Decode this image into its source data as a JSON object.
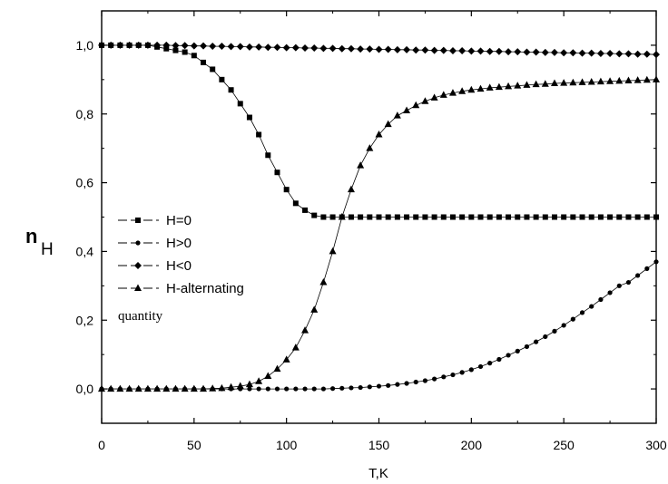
{
  "chart_data": {
    "type": "scatter",
    "xlabel": "T,K",
    "ylabel": "n",
    "ylabel_subscript": "H",
    "xlim": [
      0,
      300
    ],
    "ylim": [
      -0.1,
      1.1
    ],
    "xticks": [
      0,
      50,
      100,
      150,
      200,
      250,
      300
    ],
    "xtick_labels": [
      "0",
      "50",
      "100",
      "150",
      "200",
      "250",
      "300"
    ],
    "yticks": [
      0.0,
      0.2,
      0.4,
      0.6,
      0.8,
      1.0
    ],
    "ytick_labels": [
      "0,0",
      "0,2",
      "0,4",
      "0,6",
      "0,8",
      "1,0"
    ],
    "grid": false,
    "legend_position": "center-left",
    "legend_note": "quantity",
    "series": [
      {
        "name": "H=0",
        "marker": "square",
        "x": [
          0,
          5,
          10,
          15,
          20,
          25,
          30,
          35,
          40,
          45,
          50,
          55,
          60,
          65,
          70,
          75,
          80,
          85,
          90,
          95,
          100,
          105,
          110,
          115,
          120,
          125,
          130,
          135,
          140,
          145,
          150,
          155,
          160,
          165,
          170,
          175,
          180,
          185,
          190,
          195,
          200,
          205,
          210,
          215,
          220,
          225,
          230,
          235,
          240,
          245,
          250,
          255,
          260,
          265,
          270,
          275,
          280,
          285,
          290,
          295,
          300
        ],
        "y": [
          1.0,
          1.0,
          1.0,
          1.0,
          1.0,
          1.0,
          0.995,
          0.99,
          0.985,
          0.98,
          0.97,
          0.95,
          0.93,
          0.9,
          0.87,
          0.83,
          0.79,
          0.74,
          0.68,
          0.63,
          0.58,
          0.54,
          0.52,
          0.505,
          0.5,
          0.5,
          0.5,
          0.5,
          0.5,
          0.5,
          0.5,
          0.5,
          0.5,
          0.5,
          0.5,
          0.5,
          0.5,
          0.5,
          0.5,
          0.5,
          0.5,
          0.5,
          0.5,
          0.5,
          0.5,
          0.5,
          0.5,
          0.5,
          0.5,
          0.5,
          0.5,
          0.5,
          0.5,
          0.5,
          0.5,
          0.5,
          0.5,
          0.5,
          0.5,
          0.5,
          0.5
        ]
      },
      {
        "name": "H>0",
        "marker": "circle",
        "x": [
          0,
          5,
          10,
          15,
          20,
          25,
          30,
          35,
          40,
          45,
          50,
          55,
          60,
          65,
          70,
          75,
          80,
          85,
          90,
          95,
          100,
          105,
          110,
          115,
          120,
          125,
          130,
          135,
          140,
          145,
          150,
          155,
          160,
          165,
          170,
          175,
          180,
          185,
          190,
          195,
          200,
          205,
          210,
          215,
          220,
          225,
          230,
          235,
          240,
          245,
          250,
          255,
          260,
          265,
          270,
          275,
          280,
          285,
          290,
          295,
          300
        ],
        "y": [
          0.0,
          0.0,
          0.0,
          0.0,
          0.0,
          0.0,
          0.0,
          0.0,
          0.0,
          0.0,
          0.0,
          0.0,
          0.0,
          0.0,
          0.0,
          0.0,
          0.0,
          0.0,
          0.0,
          0.0,
          0.0,
          0.0,
          0.0,
          0.0,
          0.0,
          0.001,
          0.002,
          0.003,
          0.004,
          0.006,
          0.008,
          0.01,
          0.013,
          0.016,
          0.02,
          0.024,
          0.029,
          0.035,
          0.041,
          0.048,
          0.056,
          0.065,
          0.075,
          0.086,
          0.098,
          0.11,
          0.123,
          0.137,
          0.152,
          0.168,
          0.185,
          0.203,
          0.222,
          0.24,
          0.26,
          0.28,
          0.3,
          0.31,
          0.33,
          0.35,
          0.37
        ]
      },
      {
        "name": "H<0",
        "marker": "diamond",
        "x": [
          0,
          5,
          10,
          15,
          20,
          25,
          30,
          35,
          40,
          45,
          50,
          55,
          60,
          65,
          70,
          75,
          80,
          85,
          90,
          95,
          100,
          105,
          110,
          115,
          120,
          125,
          130,
          135,
          140,
          145,
          150,
          155,
          160,
          165,
          170,
          175,
          180,
          185,
          190,
          195,
          200,
          205,
          210,
          215,
          220,
          225,
          230,
          235,
          240,
          245,
          250,
          255,
          260,
          265,
          270,
          275,
          280,
          285,
          290,
          295,
          300
        ],
        "y": [
          1.0,
          1.0,
          1.0,
          1.0,
          1.0,
          1.0,
          1.0,
          1.0,
          0.999,
          0.999,
          0.998,
          0.998,
          0.997,
          0.997,
          0.996,
          0.996,
          0.995,
          0.995,
          0.994,
          0.994,
          0.993,
          0.993,
          0.992,
          0.992,
          0.991,
          0.991,
          0.99,
          0.99,
          0.989,
          0.989,
          0.988,
          0.988,
          0.987,
          0.987,
          0.986,
          0.986,
          0.985,
          0.985,
          0.984,
          0.984,
          0.983,
          0.983,
          0.982,
          0.982,
          0.981,
          0.981,
          0.98,
          0.98,
          0.979,
          0.979,
          0.978,
          0.978,
          0.977,
          0.977,
          0.976,
          0.976,
          0.975,
          0.975,
          0.974,
          0.974,
          0.973
        ]
      },
      {
        "name": "H-alternating",
        "marker": "triangle",
        "x": [
          0,
          5,
          10,
          15,
          20,
          25,
          30,
          35,
          40,
          45,
          50,
          55,
          60,
          65,
          70,
          75,
          80,
          85,
          90,
          95,
          100,
          105,
          110,
          115,
          120,
          125,
          130,
          135,
          140,
          145,
          150,
          155,
          160,
          165,
          170,
          175,
          180,
          185,
          190,
          195,
          200,
          205,
          210,
          215,
          220,
          225,
          230,
          235,
          240,
          245,
          250,
          255,
          260,
          265,
          270,
          275,
          280,
          285,
          290,
          295,
          300
        ],
        "y": [
          0.0,
          0.0,
          0.0,
          0.0,
          0.0,
          0.0,
          0.0,
          0.0,
          0.0,
          0.0,
          0.0,
          0.0,
          0.001,
          0.002,
          0.005,
          0.008,
          0.013,
          0.022,
          0.037,
          0.058,
          0.085,
          0.12,
          0.17,
          0.23,
          0.31,
          0.4,
          0.5,
          0.58,
          0.65,
          0.7,
          0.74,
          0.77,
          0.795,
          0.81,
          0.825,
          0.837,
          0.847,
          0.855,
          0.861,
          0.866,
          0.87,
          0.873,
          0.876,
          0.878,
          0.88,
          0.882,
          0.884,
          0.886,
          0.887,
          0.889,
          0.89,
          0.891,
          0.892,
          0.893,
          0.894,
          0.895,
          0.896,
          0.897,
          0.898,
          0.899,
          0.9
        ]
      }
    ]
  }
}
